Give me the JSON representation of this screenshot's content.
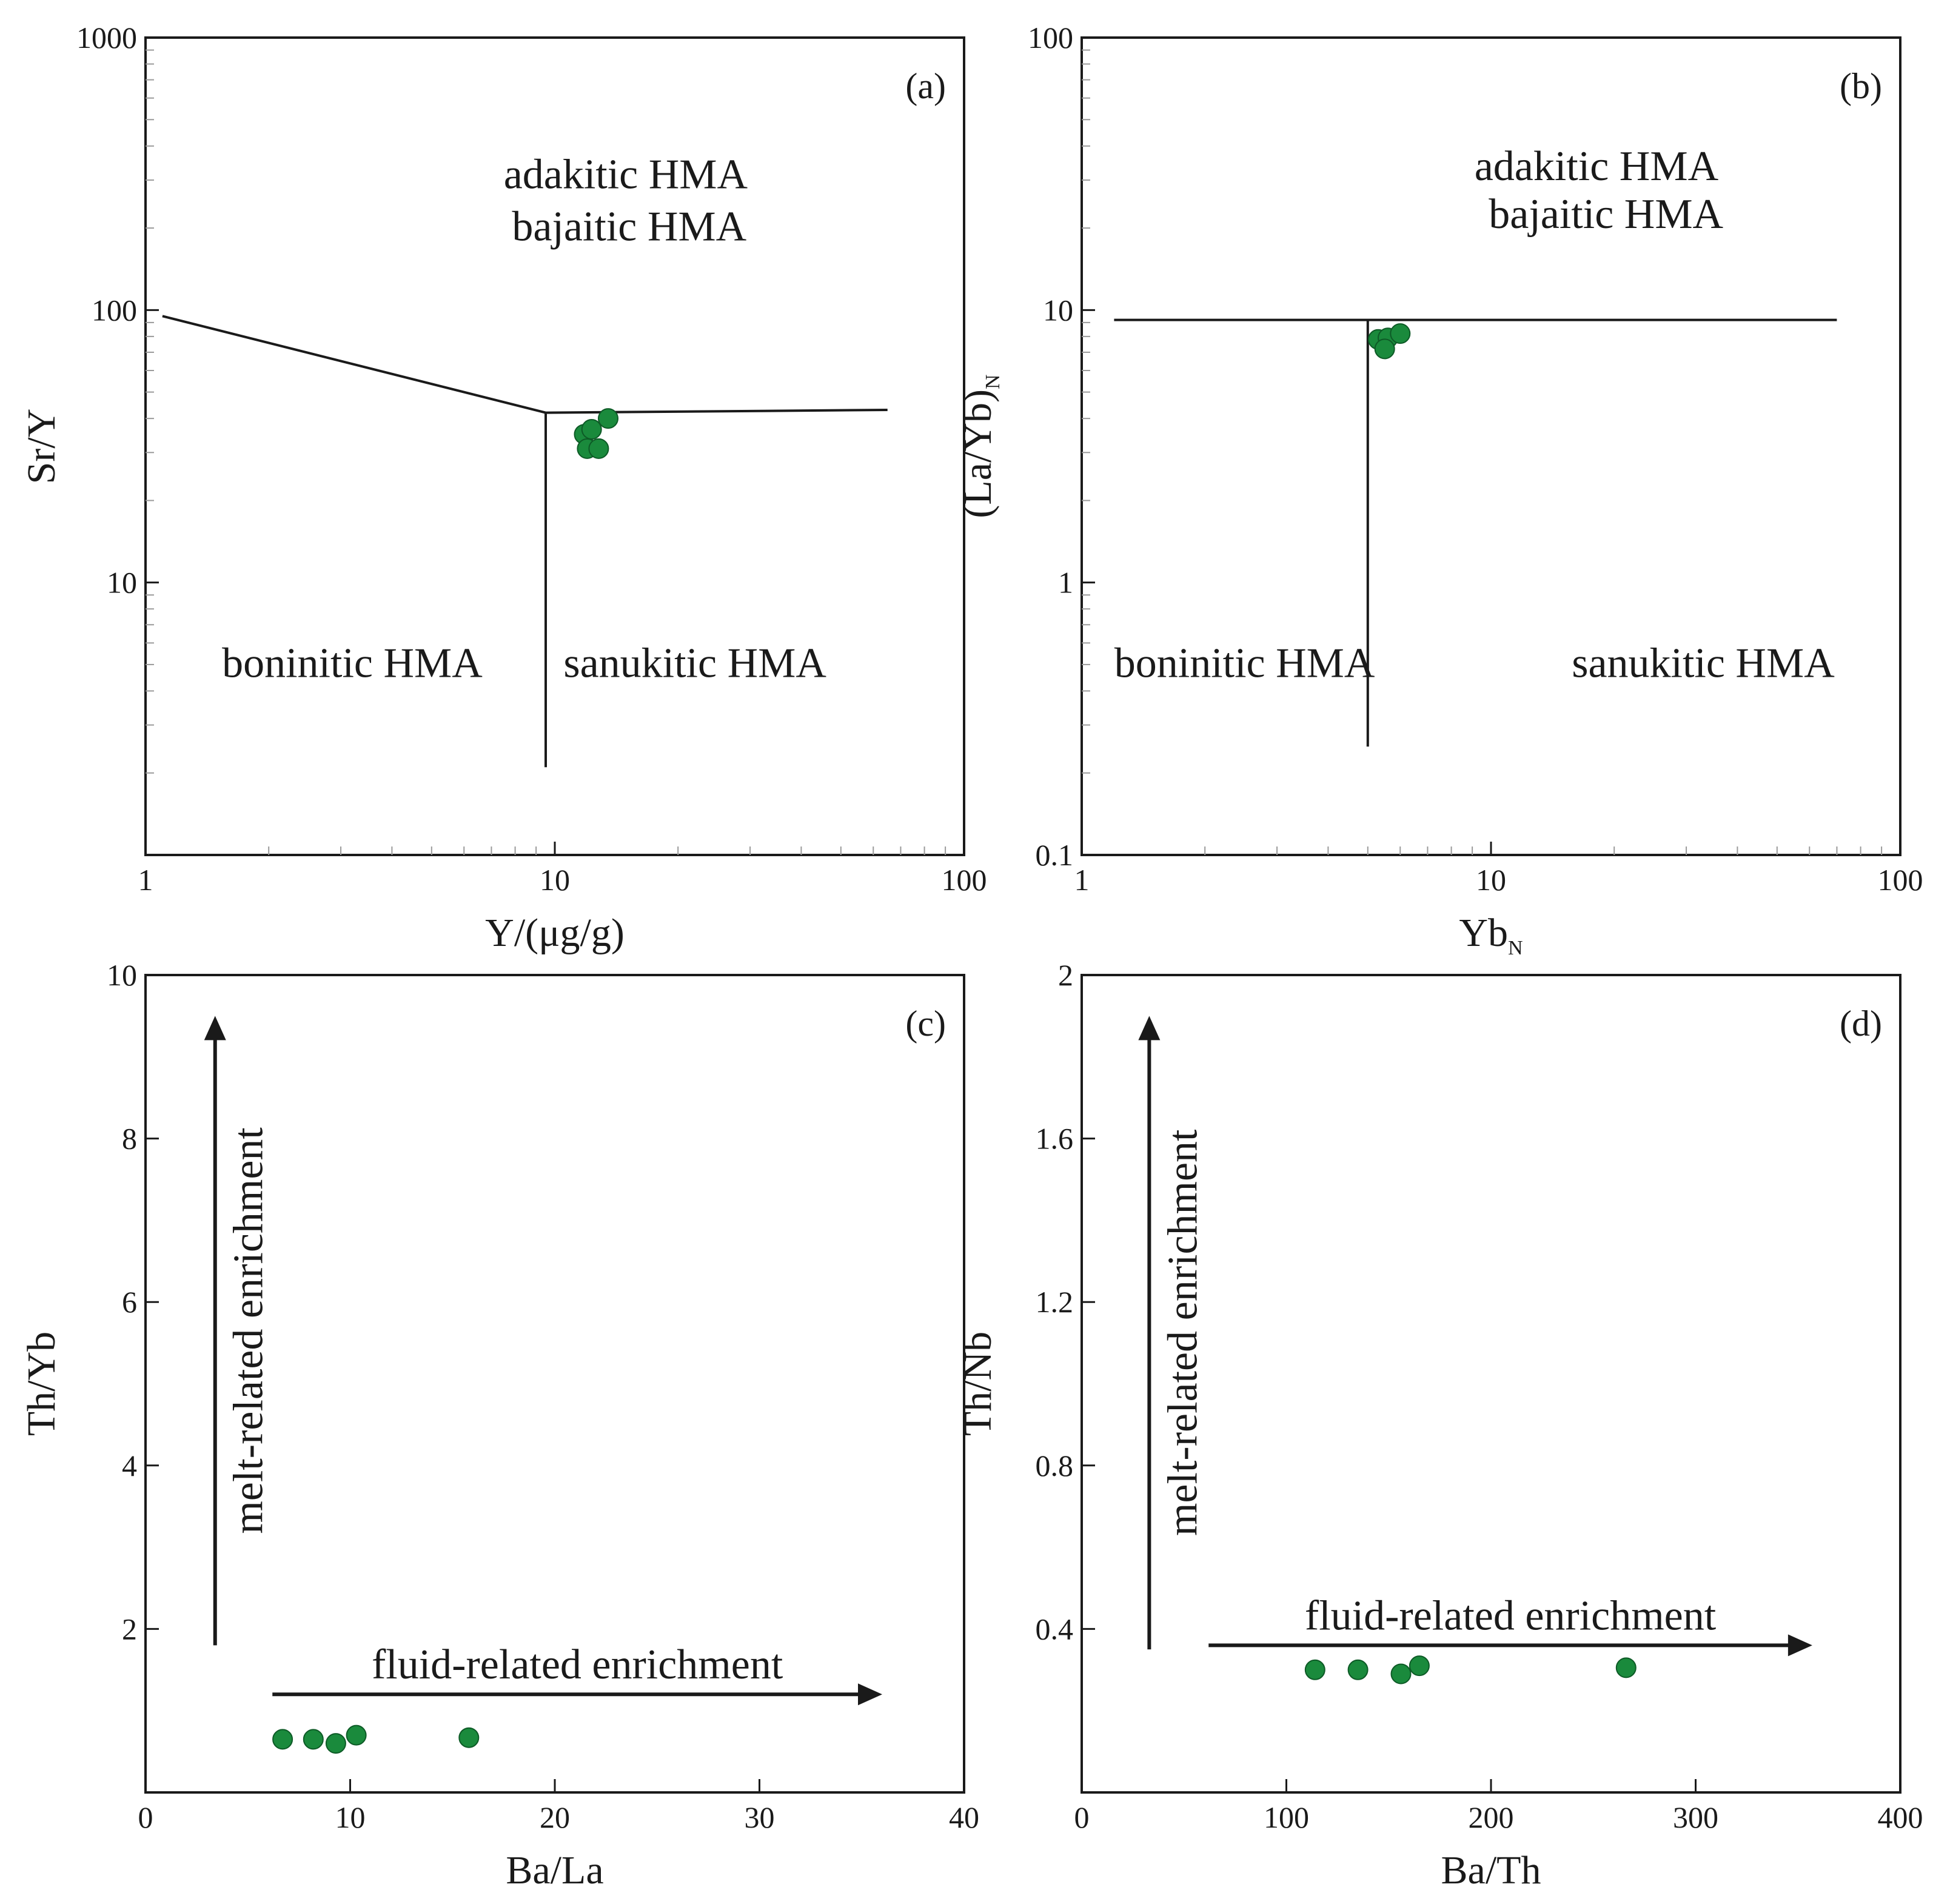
{
  "chart_data": [
    {
      "id": "a",
      "type": "scatter",
      "panel_label": "(a)",
      "xscale": "log",
      "yscale": "log",
      "xlim": [
        1,
        100
      ],
      "ylim": [
        1,
        1000
      ],
      "xticks": [
        {
          "v": 1,
          "label": "1"
        },
        {
          "v": 10,
          "label": "10"
        },
        {
          "v": 100,
          "label": "100"
        }
      ],
      "yticks": [
        {
          "v": 10,
          "label": "10"
        },
        {
          "v": 100,
          "label": "100"
        },
        {
          "v": 1000,
          "label": "1000"
        }
      ],
      "xlabel": "Y/(μg/g)",
      "ylabel": "Sr/Y",
      "ylabel_sub": "",
      "boundaries": [
        [
          [
            1.1,
            95
          ],
          [
            9.5,
            42
          ],
          [
            65,
            43
          ]
        ],
        [
          [
            9.5,
            42
          ],
          [
            9.5,
            2.1
          ]
        ]
      ],
      "field_labels": [
        {
          "text": "adakitic HMA",
          "x": 14.9,
          "y": 280
        },
        {
          "text": "bajaitic HMA",
          "x": 15.2,
          "y": 180
        },
        {
          "text": "boninitic HMA",
          "x": 3.2,
          "y": 4.5
        },
        {
          "text": "sanukitic HMA",
          "x": 22,
          "y": 4.5
        }
      ],
      "points": [
        [
          11.8,
          35
        ],
        [
          12.3,
          36.5
        ],
        [
          13.5,
          40
        ],
        [
          12.0,
          31
        ],
        [
          12.8,
          31
        ]
      ],
      "point_color": "#1a8a3c"
    },
    {
      "id": "b",
      "type": "scatter",
      "panel_label": "(b)",
      "xscale": "log",
      "yscale": "log",
      "xlim": [
        1,
        100
      ],
      "ylim": [
        0.1,
        100
      ],
      "xticks": [
        {
          "v": 1,
          "label": "1"
        },
        {
          "v": 10,
          "label": "10"
        },
        {
          "v": 100,
          "label": "100"
        }
      ],
      "yticks": [
        {
          "v": 0.1,
          "label": "0.1"
        },
        {
          "v": 1,
          "label": "1"
        },
        {
          "v": 10,
          "label": "10"
        },
        {
          "v": 100,
          "label": "100"
        }
      ],
      "xlabel": "Yb",
      "xlabel_sub": "N",
      "ylabel": "(La/Yb)",
      "ylabel_sub": "N",
      "boundaries": [
        [
          [
            1.2,
            9.2
          ],
          [
            70,
            9.2
          ]
        ],
        [
          [
            5,
            9.2
          ],
          [
            5,
            0.25
          ]
        ]
      ],
      "field_labels": [
        {
          "text": "adakitic HMA",
          "x": 18.1,
          "y": 30
        },
        {
          "text": "bajaitic HMA",
          "x": 19.1,
          "y": 20
        },
        {
          "text": "boninitic HMA",
          "x": 2.5,
          "y": 0.45
        },
        {
          "text": "sanukitic HMA",
          "x": 33,
          "y": 0.45
        }
      ],
      "points": [
        [
          5.3,
          7.8
        ],
        [
          5.6,
          7.9
        ],
        [
          5.5,
          7.2
        ],
        [
          6.0,
          8.2
        ]
      ],
      "point_color": "#1a8a3c"
    },
    {
      "id": "c",
      "type": "scatter",
      "panel_label": "(c)",
      "xscale": "linear",
      "yscale": "linear",
      "xlim": [
        0,
        40
      ],
      "ylim": [
        0,
        10
      ],
      "xticks": [
        {
          "v": 0,
          "label": "0"
        },
        {
          "v": 10,
          "label": "10"
        },
        {
          "v": 20,
          "label": "20"
        },
        {
          "v": 30,
          "label": "30"
        },
        {
          "v": 40,
          "label": "40"
        }
      ],
      "yticks": [
        {
          "v": 2,
          "label": "2"
        },
        {
          "v": 4,
          "label": "4"
        },
        {
          "v": 6,
          "label": "6"
        },
        {
          "v": 8,
          "label": "8"
        },
        {
          "v": 10,
          "label": "10"
        }
      ],
      "xlabel": "Ba/La",
      "ylabel": "Th/Yb",
      "ylabel_sub": "",
      "arrows": [
        {
          "text": "melt-related enrichment",
          "from": [
            3.4,
            1.8
          ],
          "to": [
            3.4,
            9.5
          ]
        },
        {
          "text": "fluid-related enrichment",
          "from": [
            6.2,
            1.2
          ],
          "to": [
            36,
            1.2
          ]
        }
      ],
      "points": [
        [
          6.7,
          0.65
        ],
        [
          8.2,
          0.65
        ],
        [
          9.3,
          0.6
        ],
        [
          10.3,
          0.7
        ],
        [
          15.8,
          0.67
        ]
      ],
      "point_color": "#1a8a3c"
    },
    {
      "id": "d",
      "type": "scatter",
      "panel_label": "(d)",
      "xscale": "linear",
      "yscale": "linear",
      "xlim": [
        0,
        400
      ],
      "ylim": [
        0,
        2
      ],
      "xticks": [
        {
          "v": 0,
          "label": "0"
        },
        {
          "v": 100,
          "label": "100"
        },
        {
          "v": 200,
          "label": "200"
        },
        {
          "v": 300,
          "label": "300"
        },
        {
          "v": 400,
          "label": "400"
        }
      ],
      "yticks": [
        {
          "v": 0.4,
          "label": "0.4"
        },
        {
          "v": 0.8,
          "label": "0.8"
        },
        {
          "v": 1.2,
          "label": "1.2"
        },
        {
          "v": 1.6,
          "label": "1.6"
        },
        {
          "v": 2,
          "label": "2"
        }
      ],
      "xlabel": "Ba/Th",
      "ylabel": "Th/Nb",
      "ylabel_sub": "",
      "arrows": [
        {
          "text": "melt-related enrichment",
          "from": [
            33,
            0.35
          ],
          "to": [
            33,
            1.9
          ]
        },
        {
          "text": "fluid-related enrichment",
          "from": [
            62,
            0.36
          ],
          "to": [
            357,
            0.36
          ]
        }
      ],
      "points": [
        [
          114,
          0.3
        ],
        [
          135,
          0.3
        ],
        [
          156,
          0.29
        ],
        [
          165,
          0.31
        ],
        [
          266,
          0.305
        ]
      ],
      "point_color": "#1a8a3c"
    }
  ]
}
